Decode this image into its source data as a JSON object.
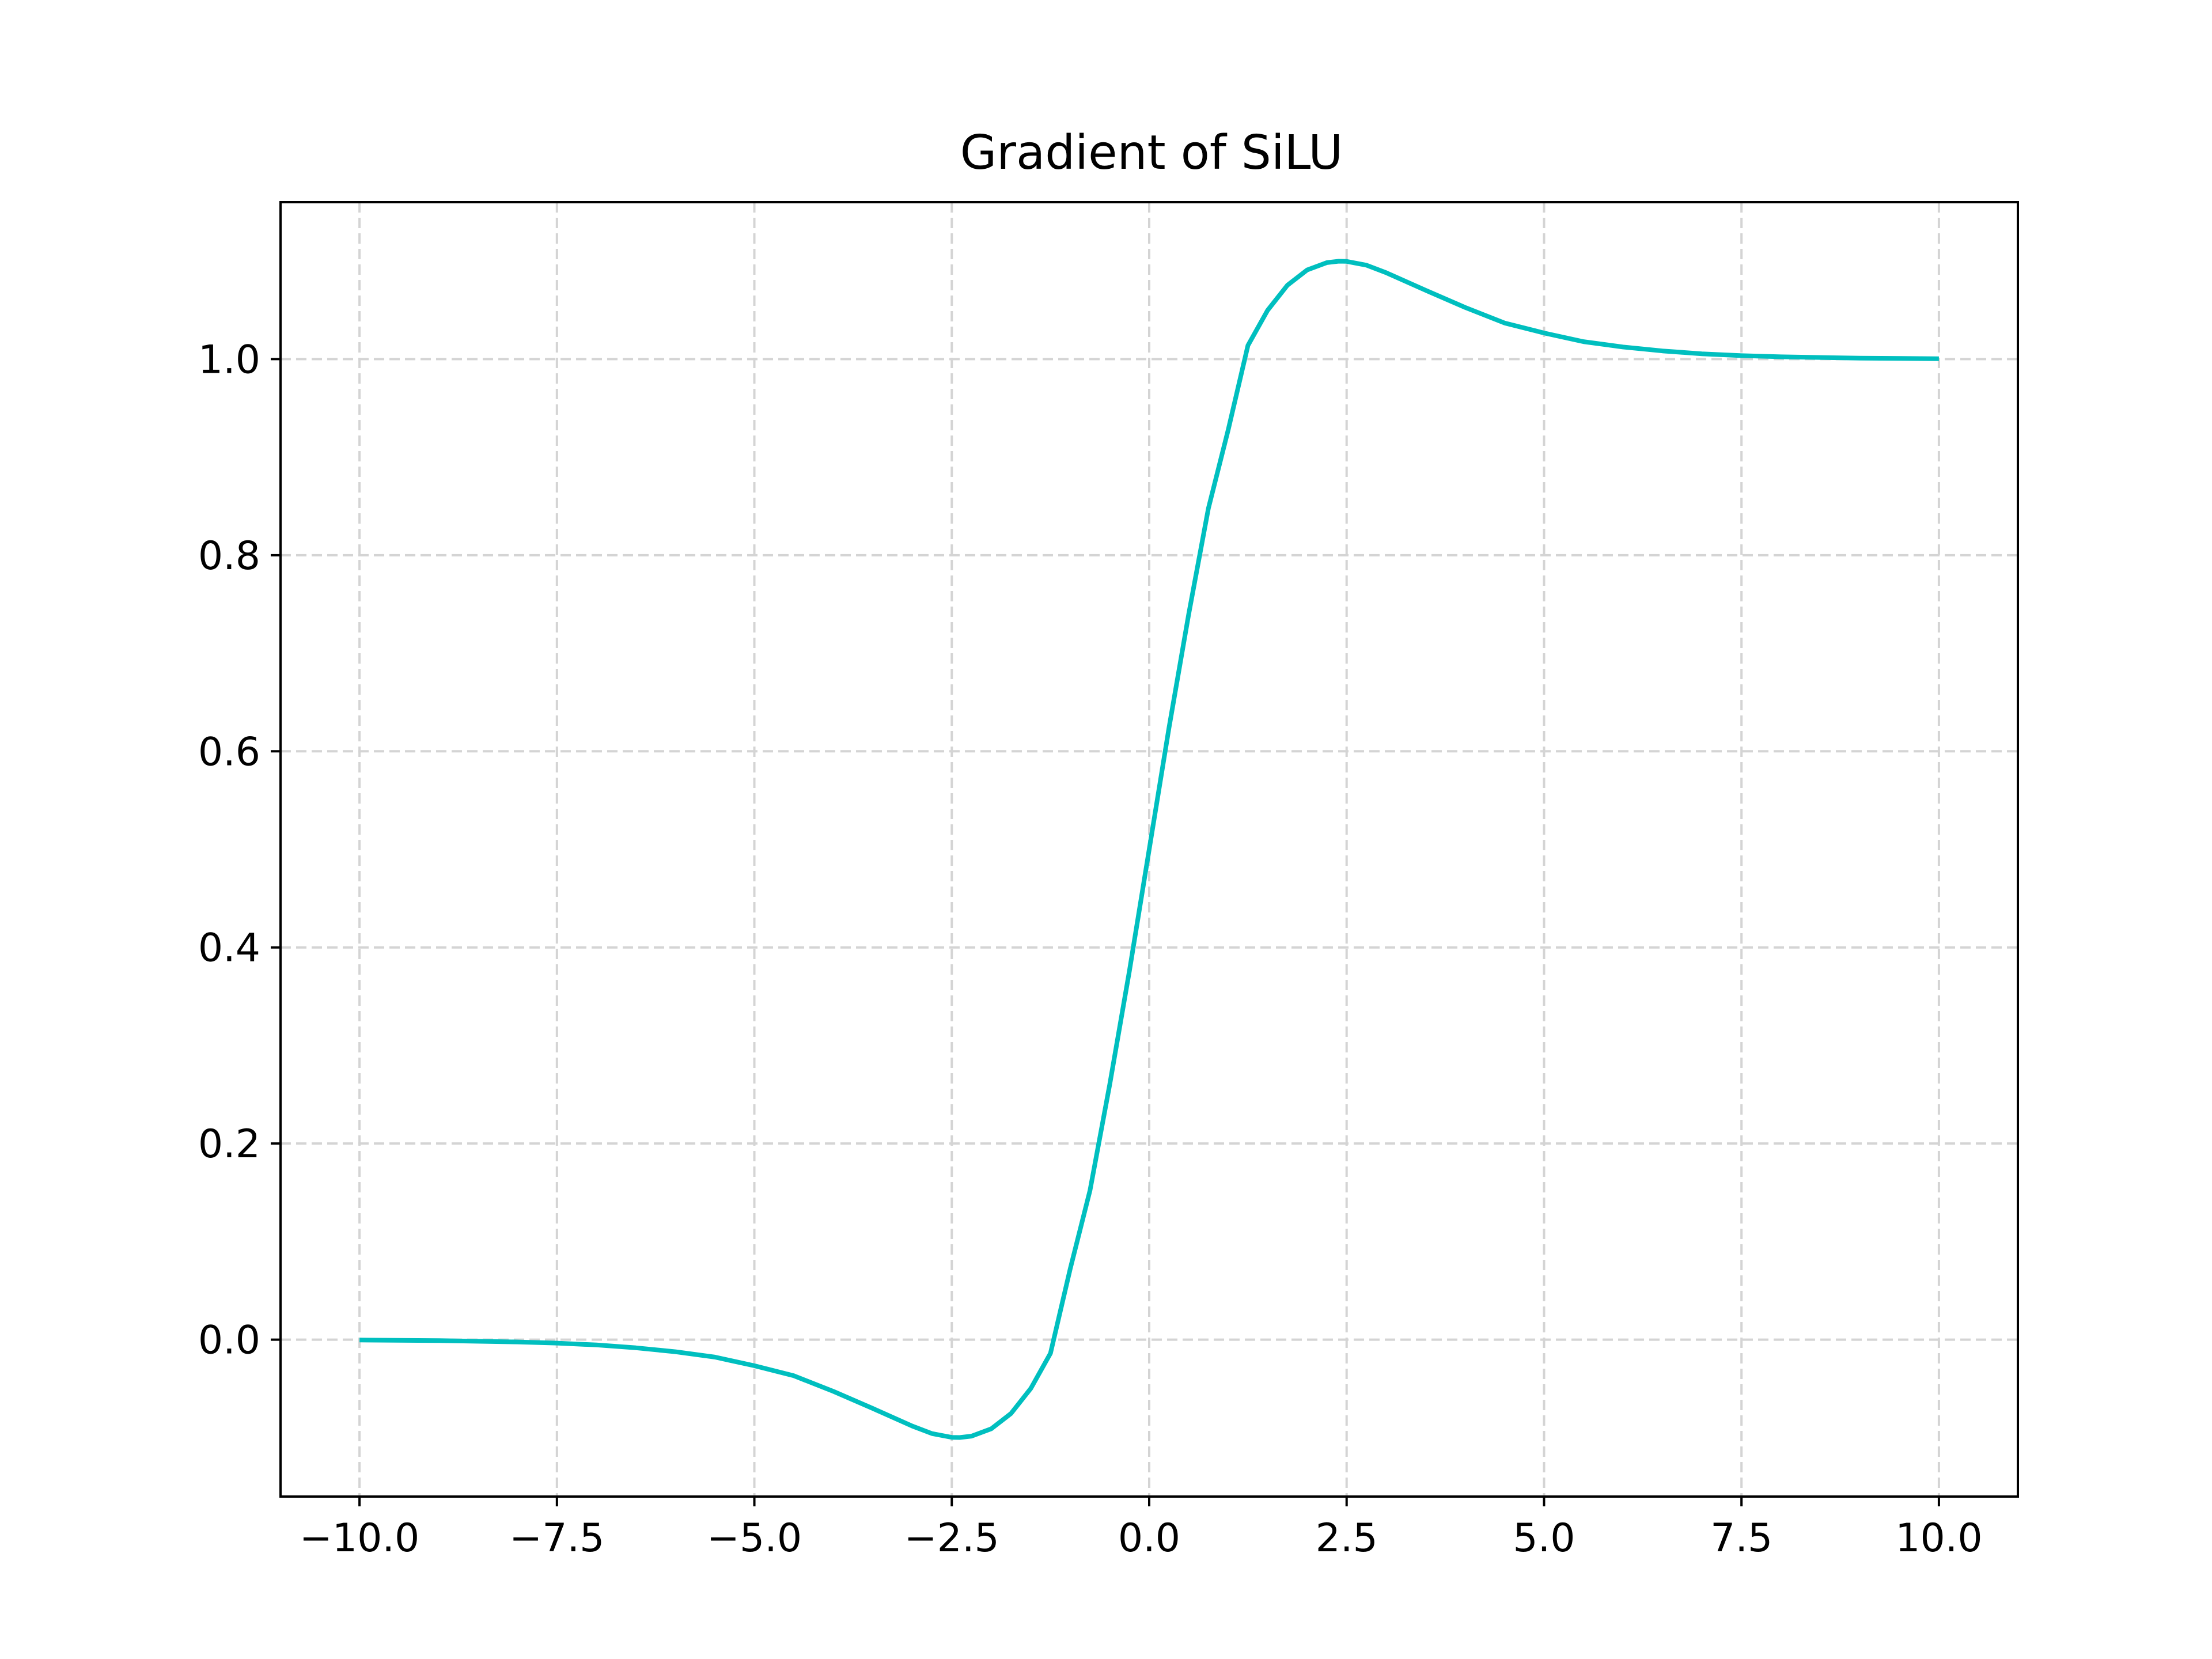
{
  "chart_data": {
    "type": "line",
    "title": "Gradient of SiLU",
    "xlabel": "",
    "ylabel": "",
    "xlim": [
      -11.0,
      11.0
    ],
    "ylim": [
      -0.16,
      1.16
    ],
    "grid": true,
    "x_ticks": [
      -10.0,
      -7.5,
      -5.0,
      -2.5,
      0.0,
      2.5,
      5.0,
      7.5,
      10.0
    ],
    "x_tick_labels": [
      "−10.0",
      "−7.5",
      "−5.0",
      "−2.5",
      "0.0",
      "2.5",
      "5.0",
      "7.5",
      "10.0"
    ],
    "y_ticks": [
      0.0,
      0.2,
      0.4,
      0.6,
      0.8,
      1.0
    ],
    "y_tick_labels": [
      "0.0",
      "0.2",
      "0.4",
      "0.6",
      "0.8",
      "1.0"
    ],
    "series": [
      {
        "color": "#00bfbf",
        "x": [
          -10.0,
          -9.0,
          -8.0,
          -7.5,
          -7.0,
          -6.5,
          -6.0,
          -5.5,
          -5.0,
          -4.5,
          -4.0,
          -3.5,
          -3.0,
          -2.75,
          -2.5,
          -2.4,
          -2.25,
          -2.0,
          -1.75,
          -1.5,
          -1.25,
          -1.0,
          -0.75,
          -0.5,
          -0.25,
          0.0,
          0.25,
          0.5,
          0.75,
          1.0,
          1.25,
          1.5,
          1.75,
          2.0,
          2.25,
          2.4,
          2.5,
          2.75,
          3.0,
          3.5,
          4.0,
          4.5,
          5.0,
          5.5,
          6.0,
          6.5,
          7.0,
          7.5,
          8.0,
          9.0,
          10.0
        ],
        "y": [
          -0.0004,
          -0.0009,
          -0.0023,
          -0.0035,
          -0.0054,
          -0.0083,
          -0.0123,
          -0.0178,
          -0.0266,
          -0.0368,
          -0.0527,
          -0.0702,
          -0.0881,
          -0.0958,
          -0.0996,
          -0.0998,
          -0.0984,
          -0.0909,
          -0.0753,
          -0.0498,
          -0.0139,
          0.0723,
          0.1521,
          0.2603,
          0.3762,
          0.5,
          0.6238,
          0.7397,
          0.8479,
          0.9277,
          1.0139,
          1.0498,
          1.0753,
          1.0909,
          1.0984,
          1.0998,
          1.0996,
          1.0958,
          1.0881,
          1.0702,
          1.0527,
          1.0368,
          1.0266,
          1.0178,
          1.0123,
          1.0083,
          1.0054,
          1.0035,
          1.0023,
          1.0009,
          1.0004
        ]
      }
    ]
  }
}
